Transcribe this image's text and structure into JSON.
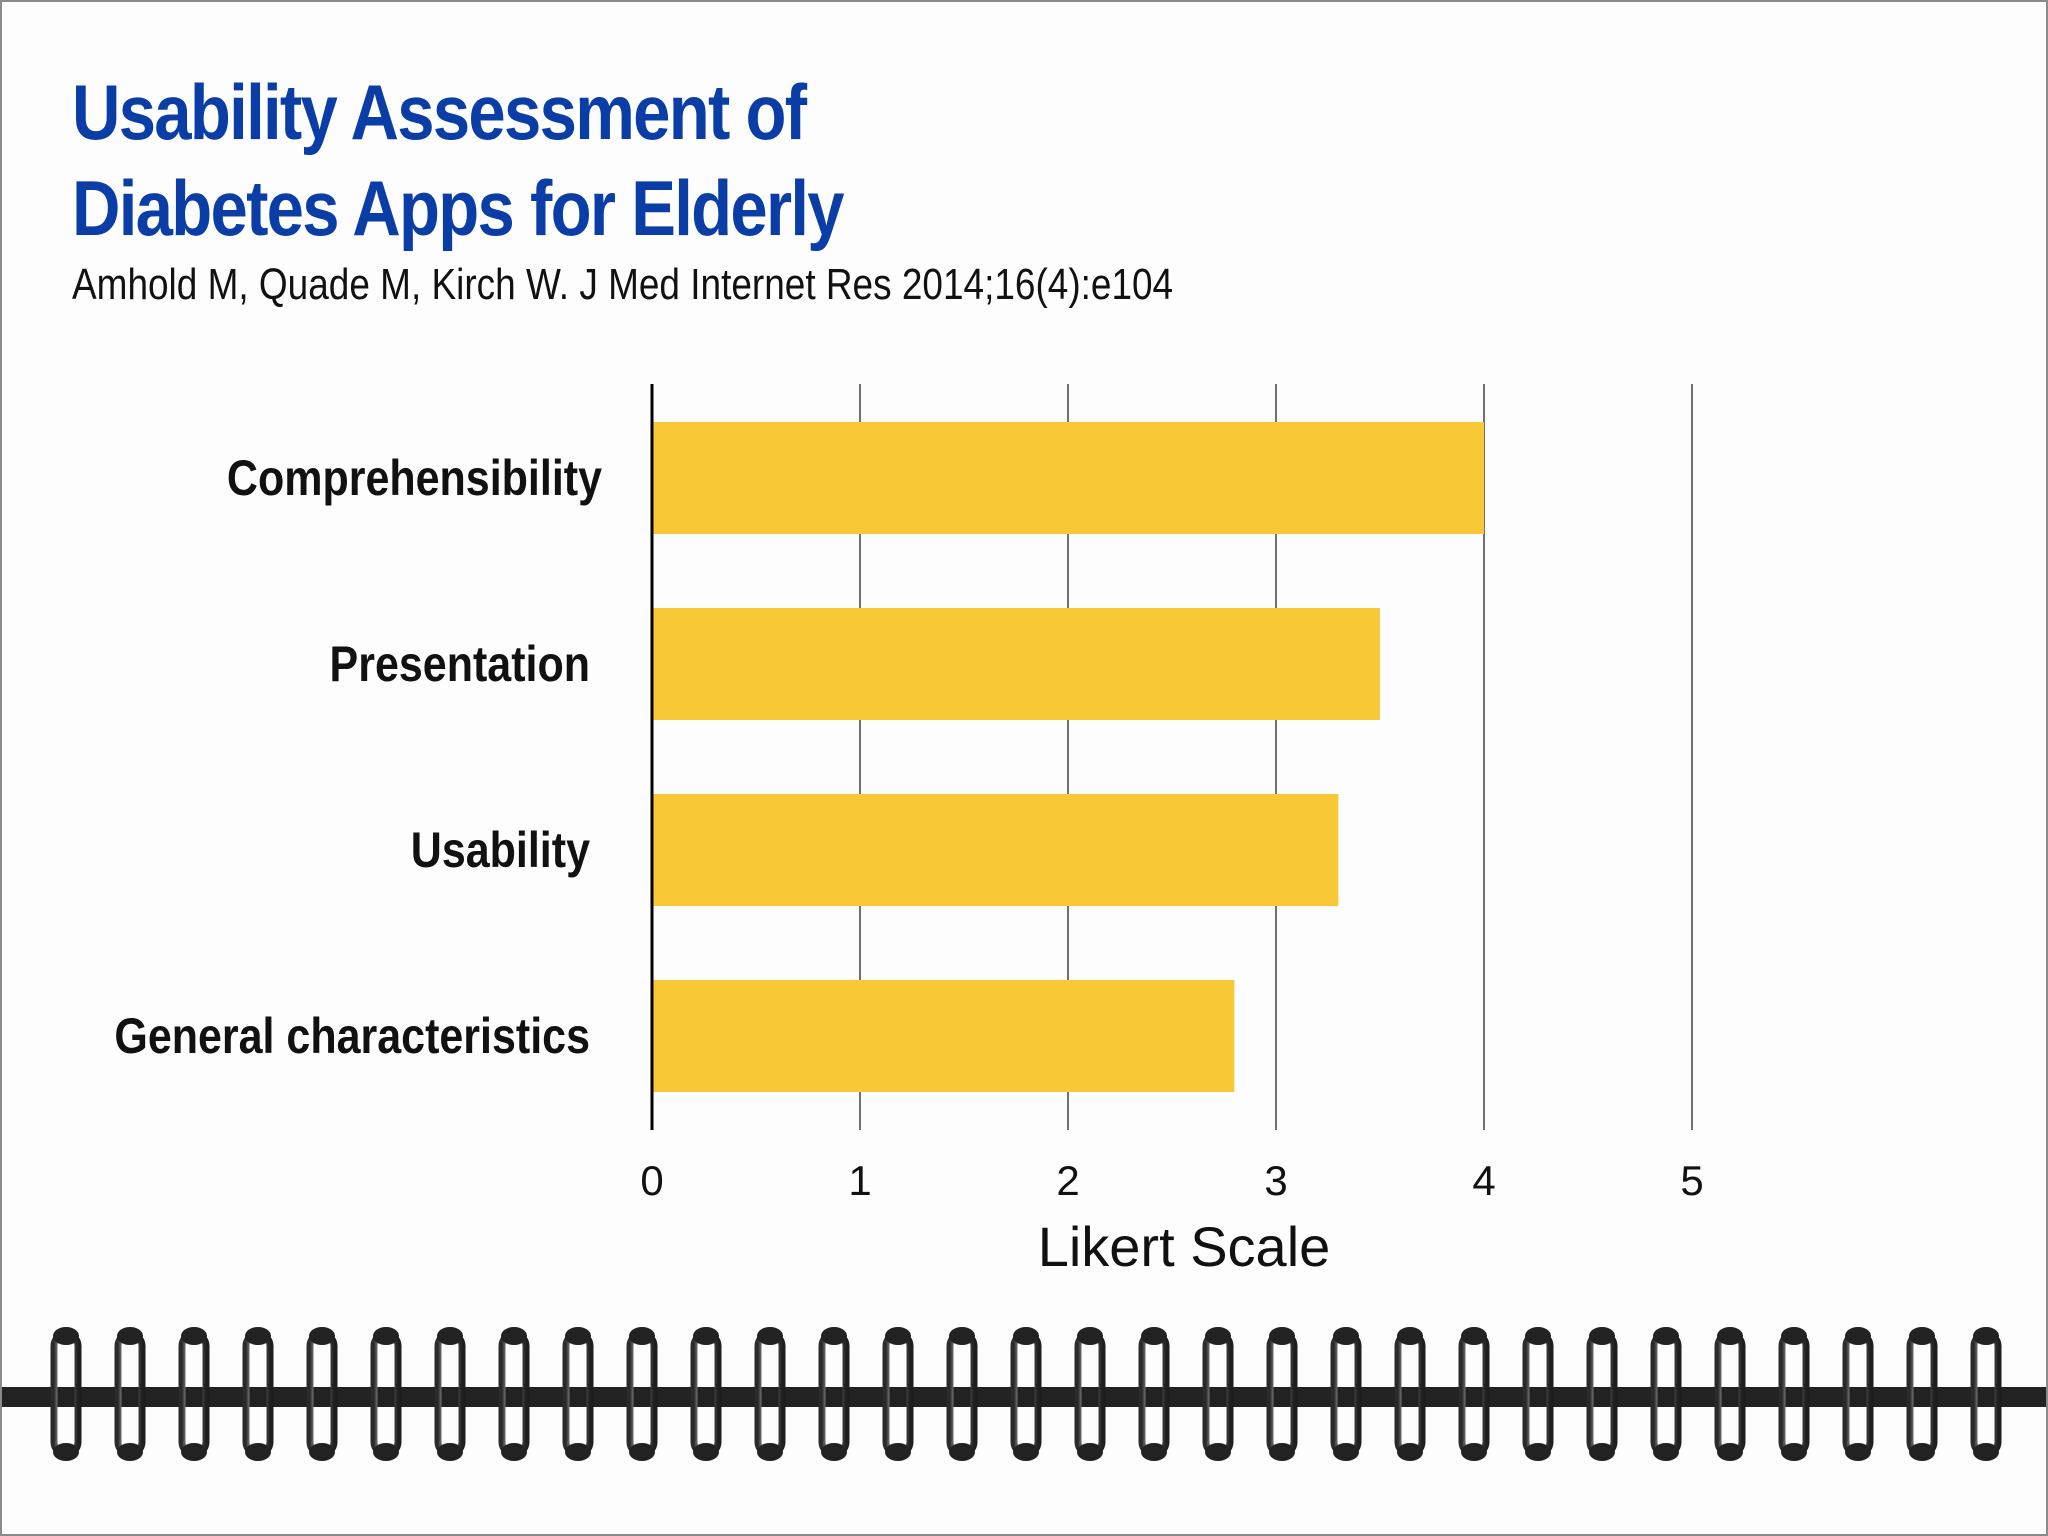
{
  "header": {
    "title_line1": "Usability Assessment of",
    "title_line2": "Diabetes Apps for Elderly",
    "citation": "Amhold M, Quade M, Kirch W. J Med Internet Res 2014;16(4):e104"
  },
  "colors": {
    "title": "#0a3ea6",
    "bar": "#f8c837",
    "gridline": "#444444",
    "axis": "#000000",
    "binding_bar": "#222222"
  },
  "chart_data": {
    "type": "bar",
    "orientation": "horizontal",
    "categories": [
      "Comprehensibility",
      "Presentation",
      "Usability",
      "General characteristics"
    ],
    "values": [
      4.0,
      3.5,
      3.3,
      2.8
    ],
    "xlabel": "Likert Scale",
    "ylabel": "",
    "xlim": [
      0,
      5
    ],
    "xticks": [
      "0",
      "1",
      "2",
      "3",
      "4",
      "5"
    ],
    "grid": "vertical",
    "legend": "none"
  },
  "decoration": {
    "binding": "spiral-binding",
    "ring_count": 31
  }
}
